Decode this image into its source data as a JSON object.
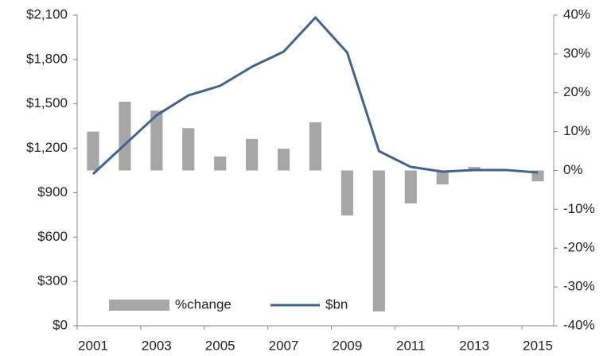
{
  "chart_data": {
    "type": "bar-line",
    "categories": [
      "2001",
      null,
      "2003",
      null,
      "2005",
      null,
      "2007",
      null,
      "2009",
      null,
      "2011",
      null,
      "2013",
      null,
      "2015"
    ],
    "series": [
      {
        "name": "%change",
        "type": "bar",
        "axis": "y2",
        "color": "#a6a6a6",
        "values": [
          10,
          17.7,
          15.4,
          10.9,
          3.6,
          8.1,
          5.6,
          12.4,
          -11.6,
          -36.3,
          -8.5,
          -3.6,
          0.9,
          0,
          -2.8
        ]
      },
      {
        "name": "$bn",
        "type": "line",
        "axis": "y",
        "color": "#41638f",
        "values": [
          1026,
          1225,
          1423,
          1557,
          1622,
          1751,
          1853,
          2084,
          1847,
          1181,
          1074,
          1042,
          1053,
          1053,
          1036
        ]
      }
    ],
    "ylim": [
      0,
      2100
    ],
    "yticks": [
      {
        "value": 0,
        "label": "$0"
      },
      {
        "value": 300,
        "label": "$300"
      },
      {
        "value": 600,
        "label": "$600"
      },
      {
        "value": 900,
        "label": "$900"
      },
      {
        "value": 1200,
        "label": "$1,200"
      },
      {
        "value": 1500,
        "label": "$1,500"
      },
      {
        "value": 1800,
        "label": "$1,800"
      },
      {
        "value": 2100,
        "label": "$2,100"
      }
    ],
    "y2lim": [
      -40,
      40
    ],
    "y2ticks": [
      {
        "value": -40,
        "label": "-40%"
      },
      {
        "value": -30,
        "label": "-30%"
      },
      {
        "value": -20,
        "label": "-20%"
      },
      {
        "value": -10,
        "label": "-10%"
      },
      {
        "value": 0,
        "label": "0%"
      },
      {
        "value": 10,
        "label": "10%"
      },
      {
        "value": 20,
        "label": "20%"
      },
      {
        "value": 30,
        "label": "30%"
      },
      {
        "value": 40,
        "label": "40%"
      }
    ],
    "legend": "lower left",
    "grid": false
  }
}
